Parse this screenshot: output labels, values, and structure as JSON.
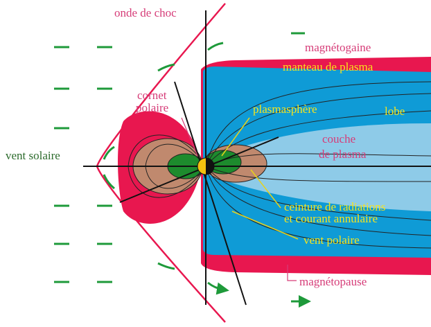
{
  "labels": {
    "shock": "onde de choc",
    "magnetosheath": "magnétogaine",
    "mantle": "manteau de plasma",
    "cusp": [
      "cornet",
      "polaire"
    ],
    "plasmasphere": "plasmasphère",
    "lobe": "lobe",
    "plasma_sheet": [
      "couche",
      "de plasma"
    ],
    "solar_wind": "vent solaire",
    "radiation_belts": [
      "ceinture de radiations",
      "et courant annulaire"
    ],
    "polar_wind": "vent polaire",
    "magnetopause": "magnétopause"
  }
}
